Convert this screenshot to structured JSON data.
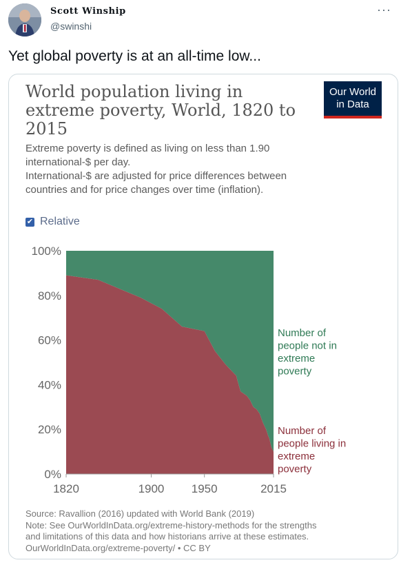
{
  "author": {
    "name": "Scott Winship",
    "handle": "@swinshi"
  },
  "tweet": {
    "text": "Yet global poverty is at an all-time low..."
  },
  "more_label": "···",
  "card": {
    "title_lines": [
      "World population living in",
      "extreme poverty, World, 1820 to",
      "2015"
    ],
    "logo_lines": [
      "Our World",
      "in Data"
    ],
    "subtitle_lines": [
      "Extreme poverty is defined as living on less than 1.90",
      "international-$ per day.",
      "International-$ are adjusted for price differences between",
      "countries and for price changes over time (inflation)."
    ],
    "relative_label": "Relative",
    "relative_checked": true,
    "footer_lines": [
      "Source: Ravallion (2016) updated with World Bank (2019)",
      "Note: See OurWorldInData.org/extreme-history-methods for the strengths",
      "and limitations of this data and how historians arrive at these estimates.",
      "OurWorldInData.org/extreme-poverty/ • CC BY"
    ]
  },
  "colors": {
    "poverty": "#9b4a52",
    "not_poverty": "#45896a",
    "poverty_label": "#8b2f3a",
    "not_poverty_label": "#2f7a55",
    "logo_bg": "#002147",
    "logo_bar": "#ce261e"
  },
  "chart_data": {
    "type": "area",
    "stacked": true,
    "relative": true,
    "x": [
      1820,
      1850,
      1870,
      1890,
      1910,
      1929,
      1950,
      1960,
      1970,
      1980,
      1981,
      1984,
      1987,
      1990,
      1993,
      1996,
      1999,
      2002,
      2005,
      2008,
      2010,
      2011,
      2012,
      2013,
      2015
    ],
    "series": [
      {
        "name": "Number of people living in extreme poverty",
        "label_lines": [
          "Number of",
          "people living in",
          "extreme",
          "poverty"
        ],
        "values": [
          89,
          87,
          83,
          79,
          74,
          66,
          64,
          55,
          49,
          44,
          42,
          37,
          36,
          35,
          33,
          30,
          29,
          27,
          23,
          20,
          17,
          16,
          14,
          12,
          10
        ]
      },
      {
        "name": "Number of people not in extreme poverty",
        "label_lines": [
          "Number of",
          "people not in",
          "extreme",
          "poverty"
        ],
        "values": [
          11,
          13,
          17,
          21,
          26,
          34,
          36,
          45,
          51,
          56,
          58,
          63,
          64,
          65,
          67,
          70,
          71,
          73,
          77,
          80,
          83,
          84,
          86,
          88,
          90
        ]
      }
    ],
    "xlim": [
      1820,
      2015
    ],
    "ylim": [
      0,
      100
    ],
    "xticks": [
      "1820",
      "1900",
      "1950",
      "2015"
    ],
    "yticks": [
      "0%",
      "20%",
      "40%",
      "60%",
      "80%",
      "100%"
    ],
    "grid": false,
    "legend": "right"
  }
}
